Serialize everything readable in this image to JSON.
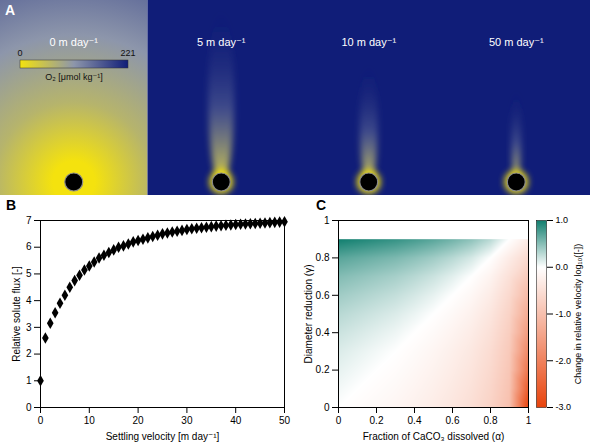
{
  "chart_data": [
    {
      "panel": "A",
      "type": "image",
      "titles": [
        "0 m day⁻¹",
        "5 m day⁻¹",
        "10 m day⁻¹",
        "50 m day⁻¹"
      ],
      "colorbar": {
        "label": "O₂ [μmol kg⁻¹]",
        "lim": [
          0,
          221
        ],
        "ticks": [
          0,
          221
        ],
        "colors": [
          "#f4e20e",
          "#8d96ab",
          "#101d78"
        ]
      }
    },
    {
      "panel": "B",
      "type": "scatter",
      "x": [
        0,
        1,
        2,
        3,
        4,
        5,
        6,
        7,
        8,
        9,
        10,
        11,
        12,
        13,
        14,
        15,
        16,
        17,
        18,
        19,
        20,
        21,
        22,
        23,
        24,
        25,
        26,
        27,
        28,
        29,
        30,
        31,
        32,
        33,
        34,
        35,
        36,
        37,
        38,
        39,
        40,
        41,
        42,
        43,
        44,
        45,
        46,
        47,
        48,
        49,
        50
      ],
      "values": [
        1.0,
        2.6,
        3.15,
        3.55,
        3.9,
        4.2,
        4.5,
        4.75,
        4.95,
        5.15,
        5.3,
        5.45,
        5.6,
        5.7,
        5.8,
        5.9,
        6.0,
        6.05,
        6.12,
        6.2,
        6.25,
        6.3,
        6.35,
        6.4,
        6.45,
        6.5,
        6.53,
        6.57,
        6.6,
        6.63,
        6.66,
        6.69,
        6.71,
        6.73,
        6.75,
        6.77,
        6.79,
        6.8,
        6.82,
        6.83,
        6.85,
        6.86,
        6.87,
        6.88,
        6.89,
        6.9,
        6.91,
        6.92,
        6.93,
        6.94,
        6.95
      ],
      "xlim": [
        0,
        50
      ],
      "ylim": [
        0,
        7
      ],
      "xticks": [
        0,
        10,
        20,
        30,
        40,
        50
      ],
      "yticks": [
        0,
        1,
        2,
        3,
        4,
        5,
        6,
        7
      ],
      "xlabel": "Settling velocity [m day⁻¹]",
      "ylabel": "Relative solute flux [-]",
      "marker": "diamond",
      "color": "#000000"
    },
    {
      "panel": "C",
      "type": "heatmap",
      "x": [
        0,
        0.1,
        0.2,
        0.3,
        0.4,
        0.5,
        0.6,
        0.7,
        0.8,
        0.9,
        1
      ],
      "y": [
        0,
        0.1,
        0.2,
        0.3,
        0.4,
        0.5,
        0.6,
        0.7,
        0.8,
        0.9
      ],
      "cells": [
        [
          0,
          -0.05,
          -0.1,
          -0.15,
          -0.22,
          -0.3,
          -0.4,
          -0.52,
          -0.7,
          -1,
          -3
        ],
        [
          0.05,
          0,
          -0.05,
          -0.1,
          -0.17,
          -0.25,
          -0.35,
          -0.47,
          -0.65,
          -0.95,
          -2.6
        ],
        [
          0.1,
          0.05,
          0,
          -0.05,
          -0.12,
          -0.2,
          -0.3,
          -0.42,
          -0.6,
          -0.9,
          -2.2
        ],
        [
          0.15,
          0.1,
          0.05,
          0,
          -0.07,
          -0.15,
          -0.25,
          -0.37,
          -0.55,
          -0.85,
          -1.9
        ],
        [
          0.22,
          0.17,
          0.12,
          0.07,
          0,
          -0.08,
          -0.18,
          -0.3,
          -0.48,
          -0.78,
          -1.6
        ],
        [
          0.3,
          0.25,
          0.2,
          0.15,
          0.08,
          0,
          -0.1,
          -0.22,
          -0.4,
          -0.7,
          -1.35
        ],
        [
          0.4,
          0.35,
          0.3,
          0.25,
          0.18,
          0.1,
          0,
          -0.12,
          -0.3,
          -0.6,
          -1.1
        ],
        [
          0.52,
          0.47,
          0.42,
          0.37,
          0.3,
          0.22,
          0.12,
          0,
          -0.18,
          -0.48,
          -0.85
        ],
        [
          0.7,
          0.65,
          0.6,
          0.55,
          0.48,
          0.4,
          0.3,
          0.18,
          0,
          -0.3,
          -0.6
        ],
        [
          1,
          0.95,
          0.9,
          0.85,
          0.78,
          0.7,
          0.6,
          0.48,
          0.3,
          0,
          -0.3
        ]
      ],
      "xlim": [
        0,
        1
      ],
      "ylim": [
        0,
        1
      ],
      "xticks": [
        0,
        0.2,
        0.4,
        0.6,
        0.8,
        1
      ],
      "yticks": [
        0,
        0.2,
        0.4,
        0.6,
        0.8,
        1
      ],
      "xlabel": "Fraction of CaCO₃ dissolved (α)",
      "ylabel": "Diameter reduction (γ)",
      "colorbar": {
        "label": "Change in relative velocity log₁₀([-])",
        "lim": [
          -3,
          1
        ],
        "center": 0,
        "ticks": [
          {
            "value": 1,
            "label": "1.0"
          },
          {
            "value": 0,
            "label": "0.0"
          },
          {
            "value": -1,
            "label": "-1.0"
          },
          {
            "value": -2,
            "label": "-2.0"
          },
          {
            "value": -3,
            "label": "-3.0"
          }
        ],
        "colors": [
          "#e8430c",
          "#ffffff",
          "#117f6f"
        ]
      }
    }
  ]
}
